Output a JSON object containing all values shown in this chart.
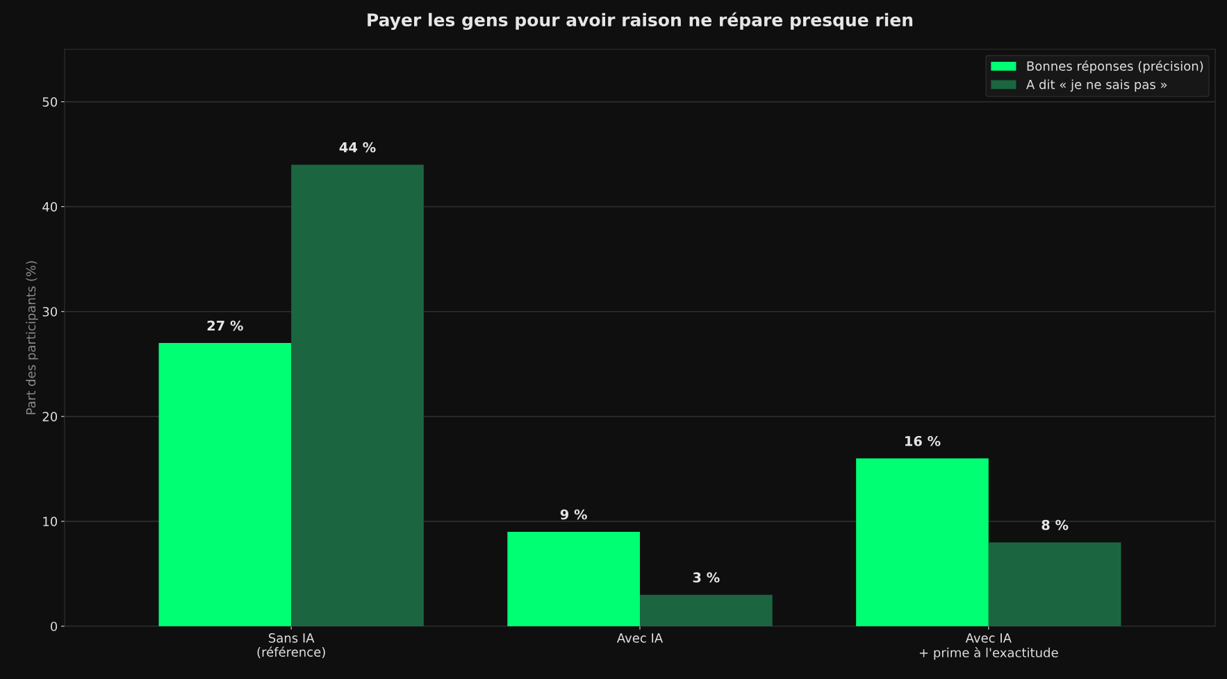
{
  "chart_data": {
    "type": "bar",
    "title": "Payer les gens pour avoir raison ne répare presque rien",
    "ylabel": "Part des participants (%)",
    "categories": [
      "Sans IA\n(référence)",
      "Avec IA",
      "Avec IA\n+ prime à l'exactitude"
    ],
    "series": [
      {
        "name": "Bonnes réponses (précision)",
        "color": "#00ff73",
        "values": [
          27,
          9,
          16
        ],
        "value_labels": [
          "27 %",
          "9 %",
          "16 %"
        ]
      },
      {
        "name": "A dit « je ne sais pas »",
        "color": "#1b6640",
        "values": [
          44,
          3,
          8
        ],
        "value_labels": [
          "44 %",
          "3 %",
          "8 %"
        ]
      }
    ],
    "ylim": [
      0,
      55
    ],
    "yticks": [
      0,
      10,
      20,
      30,
      40,
      50
    ],
    "grid": "y",
    "legend": "top right"
  }
}
